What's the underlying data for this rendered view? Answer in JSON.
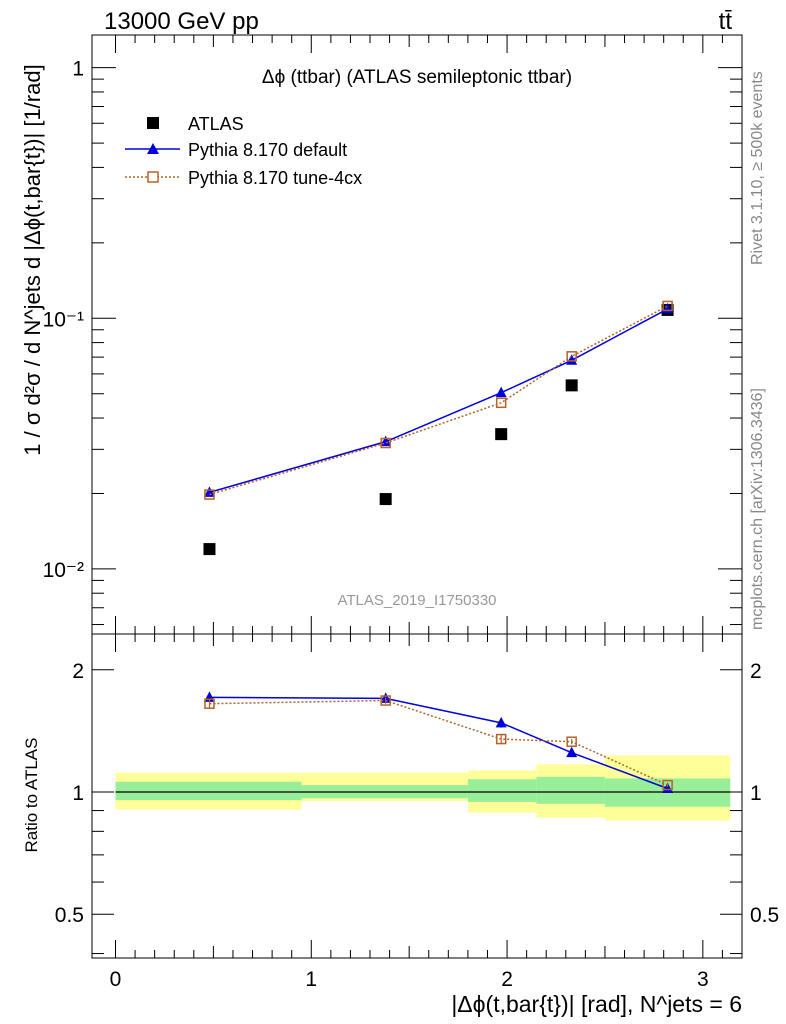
{
  "header": {
    "energy_label": "13000 GeV pp",
    "process_label": "tt̄"
  },
  "side_labels": {
    "rivet": "Rivet 3.1.10, ≥ 500k events",
    "arxiv": "mcplots.cern.ch [arXiv:1306.3436]"
  },
  "colors": {
    "data": "#000000",
    "default": "#0000dd",
    "tune": "#b5622a",
    "band_inner": "#99ee99",
    "band_outer": "#ffff99"
  },
  "chart_data": [
    {
      "type": "scatter",
      "panel": "main",
      "title": "Δϕ (ttbar) (ATLAS semileptonic ttbar)",
      "analysis_label": "ATLAS_2019_I1750330",
      "ylabel": "1 / σ d²σ / d N^jets d |Δϕ(t,bar{t})| [1/rad]",
      "yscale": "log",
      "xlim": [
        -0.12,
        3.2
      ],
      "ylim": [
        0.0055,
        1.35
      ],
      "y_ticks": [
        {
          "value": 1,
          "label": "1"
        },
        {
          "value": 0.1,
          "label": "10⁻¹"
        },
        {
          "value": 0.01,
          "label": "10⁻²"
        }
      ],
      "legend_position": "top-left",
      "series": [
        {
          "name": "ATLAS",
          "key": "data",
          "marker": "filled-square",
          "x": [
            0.48,
            1.38,
            1.97,
            2.33,
            2.82
          ],
          "y": [
            0.012,
            0.019,
            0.0345,
            0.054,
            0.108
          ]
        },
        {
          "name": "Pythia 8.170 default",
          "key": "default",
          "marker": "filled-triangle",
          "line": "solid",
          "x": [
            0.48,
            1.38,
            1.97,
            2.33,
            2.82
          ],
          "y": [
            0.0202,
            0.0322,
            0.0505,
            0.068,
            0.109
          ]
        },
        {
          "name": "Pythia 8.170 tune-4cx",
          "key": "tune",
          "marker": "open-square",
          "line": "dotted",
          "x": [
            0.48,
            1.38,
            1.97,
            2.33,
            2.82
          ],
          "y": [
            0.0198,
            0.0318,
            0.046,
            0.0705,
            0.112
          ]
        }
      ]
    },
    {
      "type": "line",
      "panel": "ratio",
      "ylabel": "Ratio to ATLAS",
      "xlabel": "|Δϕ(t,bar{t})| [rad], N^jets = 6",
      "yscale": "log",
      "xlim": [
        -0.12,
        3.2
      ],
      "ylim": [
        0.39,
        2.45
      ],
      "x_ticks": [
        0,
        1,
        2,
        3
      ],
      "y_ticks": [
        {
          "value": 2,
          "label": "2"
        },
        {
          "value": 1,
          "label": "1"
        },
        {
          "value": 0.5,
          "label": "0.5"
        }
      ],
      "reference_line": 1,
      "bands": {
        "edges": [
          0,
          0.95,
          1.8,
          2.15,
          2.5,
          3.14
        ],
        "inner": [
          [
            0.955,
            1.06
          ],
          [
            0.965,
            1.04
          ],
          [
            0.945,
            1.075
          ],
          [
            0.935,
            1.09
          ],
          [
            0.92,
            1.08
          ]
        ],
        "outer": [
          [
            0.905,
            1.115
          ],
          [
            0.95,
            1.115
          ],
          [
            0.89,
            1.13
          ],
          [
            0.865,
            1.17
          ],
          [
            0.85,
            1.23
          ]
        ]
      },
      "series": [
        {
          "name": "Pythia 8.170 default",
          "key": "default",
          "marker": "filled-triangle",
          "line": "solid",
          "x": [
            0.48,
            1.38,
            1.97,
            2.33,
            2.82
          ],
          "y": [
            1.71,
            1.7,
            1.48,
            1.25,
            1.02
          ],
          "yerr": [
            0.05,
            0.03,
            0.04,
            0.02,
            0.01
          ]
        },
        {
          "name": "Pythia 8.170 tune-4cx",
          "key": "tune",
          "marker": "open-square",
          "line": "dotted",
          "x": [
            0.48,
            1.38,
            1.97,
            2.33,
            2.82
          ],
          "y": [
            1.65,
            1.68,
            1.35,
            1.33,
            1.04
          ],
          "yerr": [
            0.04,
            0.03,
            0.03,
            0.02,
            0.01
          ]
        }
      ]
    }
  ]
}
